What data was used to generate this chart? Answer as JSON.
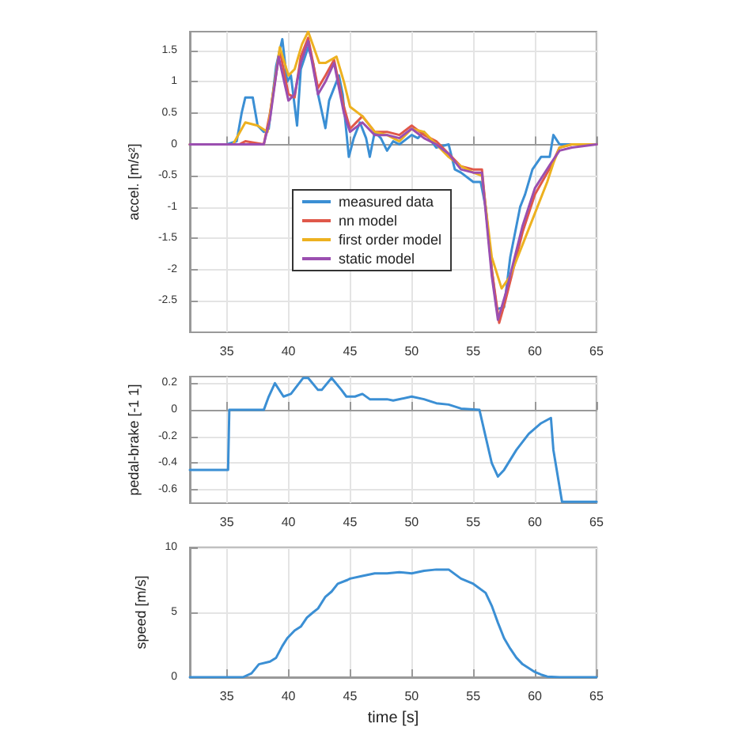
{
  "chart_data": [
    {
      "type": "line",
      "ylabel": "accel. [m/s²]",
      "xlim": [
        32,
        65
      ],
      "xticks": [
        35,
        40,
        45,
        50,
        55,
        60,
        65
      ],
      "ylim": [
        -3,
        1.8
      ],
      "yticks": [
        -2.5,
        -2,
        -1.5,
        -1,
        -0.5,
        0,
        0.5,
        1,
        1.5
      ],
      "grid": true,
      "legend": "bottom",
      "marker": "none",
      "line_style": "solid",
      "series": [
        {
          "name": "measured data",
          "color": "#3b8fd4",
          "x": [
            32,
            35,
            35.8,
            36.2,
            36.5,
            37.1,
            37.5,
            38,
            38.4,
            39,
            39.5,
            39.9,
            40.2,
            40.7,
            41,
            41.6,
            42,
            42.4,
            43,
            43.3,
            44.1,
            44.4,
            44.9,
            45.3,
            45.8,
            46.3,
            46.6,
            47,
            47.5,
            48,
            48.5,
            49,
            50,
            50.5,
            51,
            52,
            53,
            53.5,
            54,
            55,
            55.6,
            56,
            56.5,
            56.9,
            57.5,
            58,
            58.8,
            59.2,
            59.8,
            60.5,
            61.2,
            61.5,
            62,
            65
          ],
          "values": [
            0,
            0,
            0.05,
            0.5,
            0.75,
            0.75,
            0.3,
            0.2,
            0.25,
            1.25,
            1.68,
            1,
            1.1,
            0.3,
            1.2,
            1.55,
            1.3,
            0.8,
            0.26,
            0.7,
            1.1,
            0.8,
            -0.2,
            0.1,
            0.35,
            0.1,
            -0.2,
            0.2,
            0.1,
            -0.1,
            0.05,
            0,
            0.15,
            0.1,
            0.2,
            -0.05,
            0,
            -0.4,
            -0.45,
            -0.6,
            -0.6,
            -1,
            -2,
            -2.63,
            -2.6,
            -1.8,
            -1,
            -0.8,
            -0.4,
            -0.2,
            -0.2,
            0.15,
            0,
            0
          ]
        },
        {
          "name": "nn model",
          "color": "#e0584a",
          "x": [
            32,
            36,
            36.5,
            38,
            38.5,
            39.3,
            40,
            40.5,
            41,
            41.6,
            42.4,
            43,
            43.7,
            44.5,
            45,
            46,
            47,
            48,
            49,
            50,
            51,
            52,
            53,
            54,
            55,
            55.7,
            56.5,
            57.1,
            57.6,
            59,
            60,
            61.3,
            62,
            63,
            65
          ],
          "values": [
            0,
            0,
            0.05,
            0,
            0.5,
            1.5,
            0.8,
            0.75,
            1.4,
            1.7,
            0.9,
            1.1,
            1.35,
            0.6,
            0.25,
            0.45,
            0.2,
            0.2,
            0.15,
            0.3,
            0.15,
            0.05,
            -0.15,
            -0.35,
            -0.4,
            -0.4,
            -2,
            -2.85,
            -2.5,
            -1.4,
            -0.8,
            -0.35,
            -0.05,
            0,
            0
          ]
        },
        {
          "name": "first order model",
          "color": "#edb120",
          "x": [
            32,
            35.5,
            36.5,
            37.5,
            38.3,
            39.3,
            40,
            40.5,
            41.1,
            41.6,
            42.5,
            43,
            43.9,
            44.5,
            45,
            46,
            47,
            48,
            49,
            50,
            51,
            52,
            53,
            54,
            55,
            55.7,
            56.5,
            57.3,
            58,
            59,
            60,
            61,
            61.5,
            62,
            63,
            65
          ],
          "values": [
            0,
            0,
            0.35,
            0.3,
            0.2,
            1.55,
            1.1,
            1.2,
            1.6,
            1.8,
            1.3,
            1.3,
            1.4,
            1,
            0.6,
            0.45,
            0.2,
            0.15,
            0.05,
            0.25,
            0.2,
            0,
            -0.2,
            -0.35,
            -0.45,
            -0.5,
            -1.8,
            -2.3,
            -2.1,
            -1.6,
            -1.1,
            -0.6,
            -0.3,
            -0.05,
            0,
            0
          ]
        },
        {
          "name": "static model",
          "color": "#9b4fb0",
          "x": [
            32,
            38,
            38.5,
            39.2,
            40,
            40.5,
            41,
            41.6,
            42.4,
            43,
            43.7,
            44.5,
            45,
            46,
            47,
            48,
            49,
            50,
            51,
            52,
            53,
            54,
            55,
            55.7,
            56.5,
            57,
            57.6,
            59,
            60,
            61.3,
            62,
            63,
            65
          ],
          "values": [
            0,
            0,
            0.4,
            1.4,
            0.7,
            0.8,
            1.3,
            1.65,
            0.8,
            1,
            1.3,
            0.5,
            0.2,
            0.35,
            0.15,
            0.15,
            0.1,
            0.25,
            0.1,
            0,
            -0.15,
            -0.4,
            -0.45,
            -0.45,
            -2.1,
            -2.8,
            -2.4,
            -1.3,
            -0.7,
            -0.3,
            -0.1,
            -0.05,
            0
          ]
        }
      ]
    },
    {
      "type": "line",
      "ylabel": "pedal-brake [-1 1]",
      "xlim": [
        32,
        65
      ],
      "xticks": [
        35,
        40,
        45,
        50,
        55,
        60,
        65
      ],
      "ylim": [
        -0.7,
        0.25
      ],
      "yticks": [
        -0.6,
        -0.4,
        -0.2,
        0,
        0.2
      ],
      "grid": true,
      "marker": "none",
      "line_style": "solid",
      "series": [
        {
          "color": "#3b8fd4",
          "x": [
            32,
            35.1,
            35.2,
            38,
            38.4,
            38.9,
            39.6,
            40.2,
            41.2,
            41.6,
            42.4,
            42.7,
            43.5,
            44.3,
            44.7,
            45.4,
            46,
            46.6,
            48,
            48.5,
            50,
            51,
            52,
            53,
            54,
            55.5,
            56,
            56.5,
            57,
            57.5,
            58.5,
            59.5,
            60.5,
            61.3,
            61.5,
            62.2,
            65
          ],
          "values": [
            -0.45,
            -0.45,
            0,
            0,
            0.1,
            0.2,
            0.1,
            0.12,
            0.24,
            0.24,
            0.15,
            0.15,
            0.24,
            0.15,
            0.1,
            0.1,
            0.12,
            0.08,
            0.08,
            0.07,
            0.1,
            0.08,
            0.05,
            0.04,
            0.01,
            0,
            -0.2,
            -0.4,
            -0.5,
            -0.45,
            -0.3,
            -0.18,
            -0.1,
            -0.06,
            -0.3,
            -0.69,
            -0.69
          ]
        }
      ]
    },
    {
      "type": "line",
      "xlabel": "time [s]",
      "ylabel": "speed [m/s]",
      "xlim": [
        32,
        65
      ],
      "xticks": [
        35,
        40,
        45,
        50,
        55,
        60,
        65
      ],
      "ylim": [
        0,
        10
      ],
      "yticks": [
        0,
        5,
        10
      ],
      "grid": true,
      "marker": "none",
      "line_style": "solid",
      "series": [
        {
          "color": "#3b8fd4",
          "x": [
            32,
            36.3,
            37,
            37.6,
            38.5,
            39,
            39.5,
            39.9,
            40.5,
            41,
            41.5,
            42,
            42.4,
            43,
            43.5,
            44,
            44.8,
            45,
            46,
            47,
            48,
            49,
            50,
            51,
            52,
            53,
            54,
            55,
            56,
            56.5,
            57,
            57.5,
            58,
            58.5,
            59,
            59.5,
            60,
            60.5,
            61,
            62,
            65
          ],
          "values": [
            0,
            0,
            0.3,
            1,
            1.2,
            1.5,
            2.4,
            3,
            3.6,
            3.9,
            4.6,
            5,
            5.3,
            6.2,
            6.6,
            7.2,
            7.5,
            7.6,
            7.8,
            8,
            8,
            8.1,
            8,
            8.2,
            8.3,
            8.3,
            7.6,
            7.2,
            6.5,
            5.5,
            4.2,
            3,
            2.2,
            1.5,
            1,
            0.7,
            0.4,
            0.2,
            0.05,
            0,
            0
          ]
        }
      ]
    }
  ]
}
